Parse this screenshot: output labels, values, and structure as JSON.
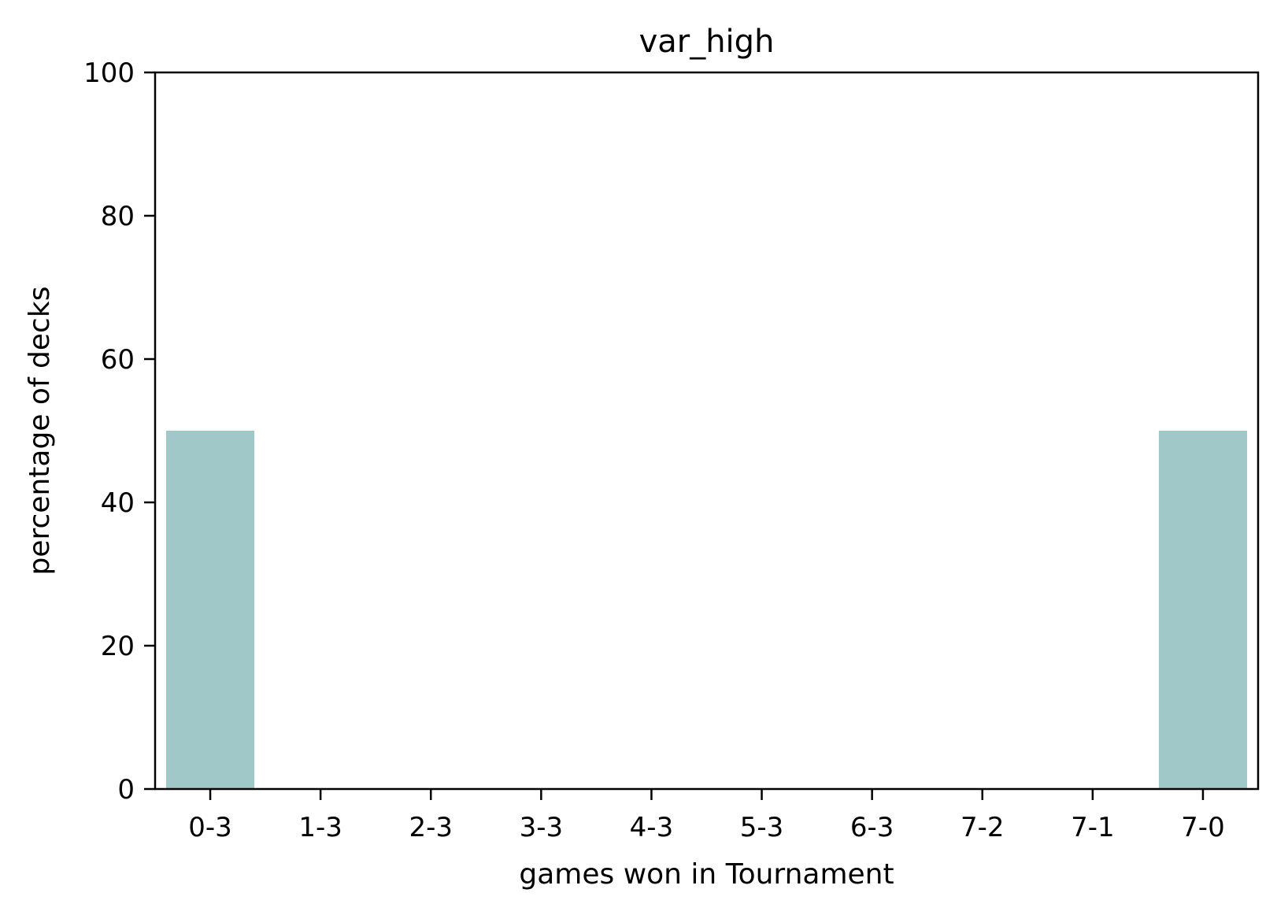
{
  "chart_data": {
    "type": "bar",
    "title": "var_high",
    "xlabel": "games won in Tournament",
    "ylabel": "percentage of decks",
    "categories": [
      "0-3",
      "1-3",
      "2-3",
      "3-3",
      "4-3",
      "5-3",
      "6-3",
      "7-2",
      "7-1",
      "7-0"
    ],
    "values": [
      50,
      0,
      0,
      0,
      0,
      0,
      0,
      0,
      0,
      50
    ],
    "ylim": [
      0,
      100
    ],
    "yticks": [
      0,
      20,
      40,
      60,
      80,
      100
    ],
    "grid": false,
    "legend": "none",
    "bar_color": "#a0c8c8"
  }
}
